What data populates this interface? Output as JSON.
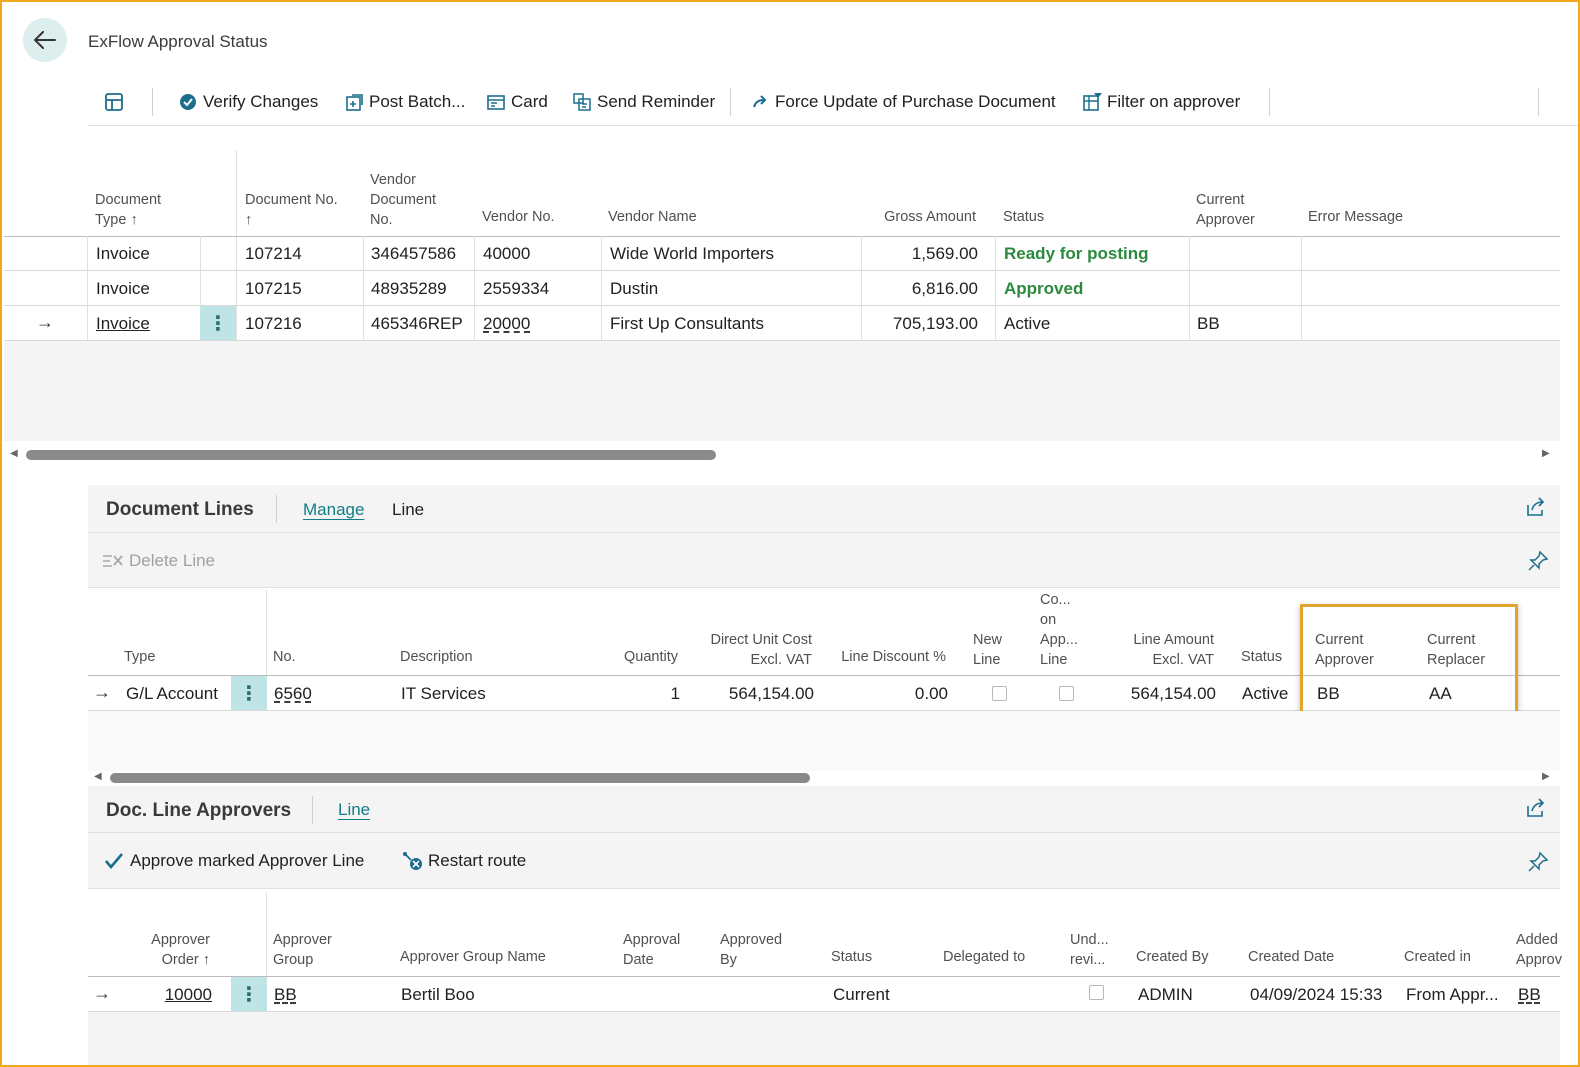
{
  "page": {
    "title": "ExFlow Approval Status"
  },
  "actions": {
    "verify_changes": "Verify Changes",
    "post_batch": "Post Batch...",
    "card": "Card",
    "send_reminder": "Send Reminder",
    "force_update": "Force Update of Purchase Document",
    "filter_on_approver": "Filter on approver"
  },
  "documents": {
    "headers": {
      "document_type": [
        "Document",
        "Type ↑"
      ],
      "document_no": [
        "Document No.",
        "↑"
      ],
      "vendor_document_no": [
        "Vendor",
        "Document",
        "No."
      ],
      "vendor_no": "Vendor No.",
      "vendor_name": "Vendor Name",
      "gross_amount": "Gross Amount",
      "status": "Status",
      "current_approver": [
        "Current",
        "Approver"
      ],
      "error_message": "Error Message"
    },
    "rows": [
      {
        "document_type": "Invoice",
        "document_no": "107214",
        "vendor_document_no": "346457586",
        "vendor_no": "40000",
        "vendor_name": "Wide World Importers",
        "gross_amount": "1,569.00",
        "status": "Ready for posting",
        "current_approver": "",
        "error_message": ""
      },
      {
        "document_type": "Invoice",
        "document_no": "107215",
        "vendor_document_no": "48935289",
        "vendor_no": "2559334",
        "vendor_name": "Dustin",
        "gross_amount": "6,816.00",
        "status": "Approved",
        "current_approver": "",
        "error_message": ""
      },
      {
        "document_type": "Invoice",
        "document_no": "107216",
        "vendor_document_no": "465346REP",
        "vendor_no": "20000",
        "vendor_name": "First Up Consultants",
        "gross_amount": "705,193.00",
        "status": "Active",
        "current_approver": "BB",
        "error_message": ""
      }
    ]
  },
  "document_lines": {
    "title": "Document Lines",
    "tabs": [
      "Manage",
      "Line"
    ],
    "delete_line": "Delete Line",
    "headers": {
      "type": "Type",
      "no": "No.",
      "description": "Description",
      "quantity": "Quantity",
      "direct_unit_cost": [
        "Direct Unit Cost",
        "Excl. VAT"
      ],
      "line_discount": "Line Discount %",
      "new_line": [
        "New",
        "Line"
      ],
      "comment_on_approver_line": [
        "Co...",
        "on",
        "App...",
        "Line"
      ],
      "line_amount": [
        "Line Amount",
        "Excl. VAT"
      ],
      "status": "Status",
      "current_approver": [
        "Current",
        "Approver"
      ],
      "current_replacer": [
        "Current",
        "Replacer"
      ]
    },
    "rows": [
      {
        "type": "G/L Account",
        "no": "6560",
        "description": "IT Services",
        "quantity": "1",
        "direct_unit_cost": "564,154.00",
        "line_discount": "0.00",
        "line_amount": "564,154.00",
        "status": "Active",
        "current_approver": "BB",
        "current_replacer": "AA"
      }
    ]
  },
  "doc_line_approvers": {
    "title": "Doc. Line Approvers",
    "tabs": [
      "Line"
    ],
    "approve_marked": "Approve marked Approver Line",
    "restart_route": "Restart route",
    "headers": {
      "approver_order": [
        "Approver",
        "Order ↑"
      ],
      "approver_group": [
        "Approver",
        "Group"
      ],
      "approver_group_name": "Approver Group Name",
      "approval_date": [
        "Approval",
        "Date"
      ],
      "approved_by": [
        "Approved",
        "By"
      ],
      "status": "Status",
      "delegated_to": "Delegated to",
      "under_review": [
        "Und...",
        "revi..."
      ],
      "created_by": "Created By",
      "created_date": "Created Date",
      "created_in": "Created in",
      "added_approver": [
        "Added",
        "Approv"
      ]
    },
    "rows": [
      {
        "approver_order": "10000",
        "approver_group": "BB",
        "approver_group_name": "Bertil Boo",
        "approval_date": "",
        "approved_by": "",
        "status": "Current",
        "delegated_to": "",
        "created_by": "ADMIN",
        "created_date": "04/09/2024 15:33",
        "created_in": "From Appr...",
        "added_approver": "BB"
      }
    ]
  },
  "colors": {
    "accent": "#117d86",
    "highlight_border": "#e3a42b",
    "status_green": "#2b8a3e",
    "dots_bg": "#bfe4e6"
  }
}
